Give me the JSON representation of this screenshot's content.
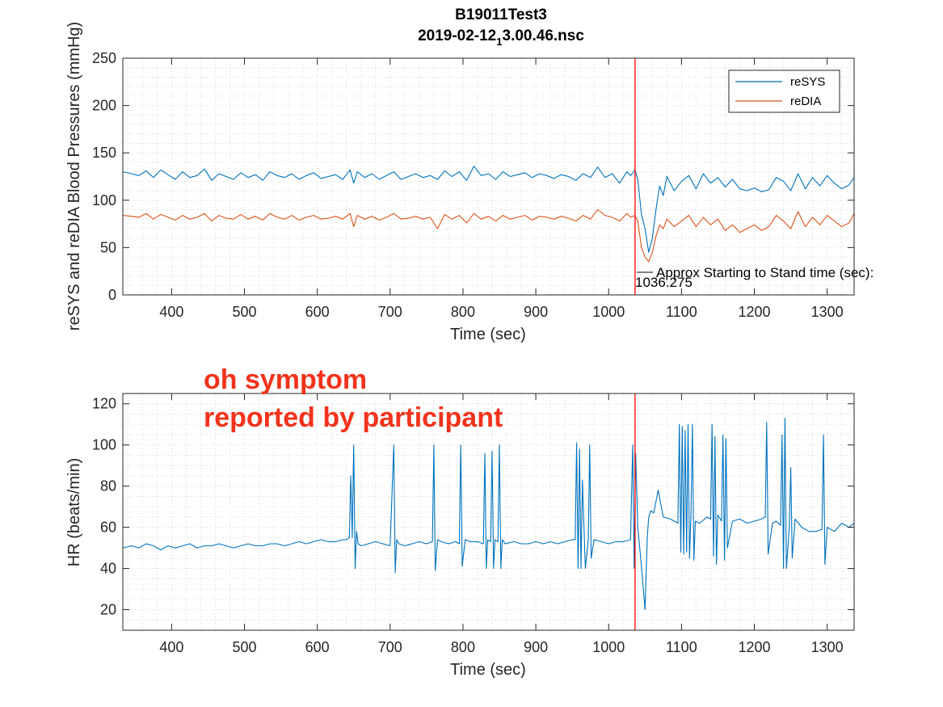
{
  "chart_data": [
    {
      "type": "line",
      "title": "B19011Test3",
      "subtitle_main": "2019-02-12",
      "subtitle_sub": "1",
      "subtitle_tail": "3.00.46.nsc",
      "xlabel": "Time (sec)",
      "ylabel": "reSYS and reDIA Blood Pressures (mmHg)",
      "xlim": [
        333,
        1337
      ],
      "ylim": [
        0,
        250
      ],
      "xticks": [
        400,
        500,
        600,
        700,
        800,
        900,
        1000,
        1100,
        1200,
        1300
      ],
      "yticks": [
        0,
        50,
        100,
        150,
        200,
        250
      ],
      "grid": true,
      "legend_placement": "top-right",
      "series": [
        {
          "name": "reSYS",
          "color": "#0072bd",
          "x": [
            333,
            345,
            355,
            365,
            375,
            385,
            395,
            405,
            415,
            425,
            435,
            445,
            455,
            465,
            475,
            485,
            495,
            505,
            515,
            525,
            535,
            545,
            555,
            565,
            575,
            585,
            595,
            605,
            615,
            625,
            635,
            645,
            650,
            655,
            665,
            675,
            685,
            695,
            705,
            715,
            725,
            735,
            745,
            755,
            765,
            775,
            785,
            795,
            805,
            815,
            825,
            835,
            845,
            855,
            865,
            875,
            885,
            895,
            905,
            915,
            925,
            935,
            945,
            955,
            965,
            975,
            985,
            995,
            1005,
            1015,
            1025,
            1030,
            1036,
            1040,
            1045,
            1050,
            1055,
            1060,
            1065,
            1070,
            1075,
            1080,
            1090,
            1100,
            1110,
            1120,
            1130,
            1140,
            1150,
            1160,
            1170,
            1180,
            1190,
            1200,
            1210,
            1220,
            1230,
            1240,
            1250,
            1260,
            1270,
            1280,
            1290,
            1300,
            1310,
            1320,
            1330,
            1337
          ],
          "values": [
            130,
            128,
            126,
            131,
            124,
            132,
            127,
            122,
            130,
            124,
            126,
            133,
            121,
            128,
            125,
            122,
            129,
            124,
            127,
            121,
            130,
            126,
            124,
            128,
            122,
            126,
            129,
            123,
            125,
            127,
            122,
            132,
            118,
            130,
            124,
            128,
            122,
            126,
            130,
            122,
            125,
            128,
            124,
            126,
            122,
            131,
            125,
            130,
            121,
            136,
            126,
            128,
            122,
            130,
            125,
            127,
            129,
            124,
            128,
            126,
            123,
            127,
            125,
            121,
            128,
            124,
            135,
            124,
            128,
            118,
            130,
            126,
            132,
            122,
            85,
            70,
            45,
            60,
            90,
            115,
            105,
            125,
            110,
            120,
            126,
            112,
            128,
            118,
            124,
            114,
            122,
            112,
            110,
            113,
            109,
            111,
            124,
            120,
            110,
            128,
            112,
            124,
            115,
            126,
            118,
            112,
            116,
            124
          ]
        },
        {
          "name": "reDIA",
          "color": "#d95319",
          "x": [
            333,
            345,
            355,
            365,
            375,
            385,
            395,
            405,
            415,
            425,
            435,
            445,
            455,
            465,
            475,
            485,
            495,
            505,
            515,
            525,
            535,
            545,
            555,
            565,
            575,
            585,
            595,
            605,
            615,
            625,
            635,
            645,
            650,
            655,
            665,
            675,
            685,
            695,
            705,
            715,
            725,
            735,
            745,
            755,
            765,
            775,
            785,
            795,
            805,
            815,
            825,
            835,
            845,
            855,
            865,
            875,
            885,
            895,
            905,
            915,
            925,
            935,
            945,
            955,
            965,
            975,
            985,
            995,
            1005,
            1015,
            1025,
            1030,
            1036,
            1040,
            1045,
            1050,
            1055,
            1060,
            1065,
            1070,
            1075,
            1080,
            1090,
            1100,
            1110,
            1120,
            1130,
            1140,
            1150,
            1160,
            1170,
            1180,
            1190,
            1200,
            1210,
            1220,
            1230,
            1240,
            1250,
            1260,
            1270,
            1280,
            1290,
            1300,
            1310,
            1320,
            1330,
            1337
          ],
          "values": [
            84,
            83,
            82,
            86,
            80,
            85,
            82,
            79,
            84,
            80,
            82,
            86,
            78,
            84,
            81,
            80,
            85,
            80,
            83,
            79,
            86,
            82,
            80,
            84,
            79,
            82,
            84,
            80,
            81,
            83,
            80,
            86,
            72,
            84,
            80,
            83,
            79,
            82,
            86,
            80,
            81,
            83,
            80,
            82,
            70,
            85,
            80,
            84,
            76,
            86,
            80,
            83,
            78,
            84,
            80,
            82,
            84,
            79,
            83,
            82,
            80,
            83,
            81,
            78,
            84,
            80,
            90,
            84,
            82,
            78,
            86,
            82,
            84,
            78,
            50,
            40,
            35,
            45,
            62,
            74,
            70,
            80,
            72,
            78,
            84,
            72,
            82,
            74,
            80,
            68,
            74,
            66,
            70,
            74,
            68,
            72,
            84,
            78,
            70,
            88,
            72,
            82,
            74,
            84,
            78,
            72,
            76,
            86
          ]
        }
      ],
      "vline": {
        "x": 1036.275,
        "color": "#ff0000"
      },
      "annotation_label": "Approx Starting to Stand time (sec):",
      "annotation_value": "1036.275"
    },
    {
      "type": "line",
      "xlabel": "Time (sec)",
      "ylabel": "HR (beats/min)",
      "xlim": [
        333,
        1337
      ],
      "ylim": [
        10,
        125
      ],
      "xticks": [
        400,
        500,
        600,
        700,
        800,
        900,
        1000,
        1100,
        1200,
        1300
      ],
      "yticks": [
        20,
        40,
        60,
        80,
        100,
        120
      ],
      "grid": true,
      "series": [
        {
          "color": "#0072bd",
          "x": [
            333,
            345,
            355,
            365,
            375,
            385,
            395,
            405,
            415,
            425,
            435,
            445,
            455,
            465,
            475,
            485,
            495,
            505,
            515,
            525,
            535,
            545,
            555,
            565,
            575,
            585,
            595,
            605,
            615,
            625,
            635,
            640,
            644,
            646,
            648,
            650,
            652,
            654,
            656,
            660,
            670,
            680,
            690,
            700,
            705,
            707,
            709,
            712,
            720,
            730,
            740,
            750,
            758,
            760,
            762,
            765,
            770,
            780,
            790,
            795,
            797,
            799,
            803,
            810,
            820,
            828,
            830,
            832,
            834,
            838,
            840,
            842,
            844,
            848,
            850,
            852,
            854,
            858,
            870,
            880,
            890,
            900,
            910,
            920,
            930,
            940,
            950,
            954,
            956,
            958,
            960,
            962,
            964,
            968,
            972,
            974,
            976,
            980,
            990,
            1000,
            1010,
            1020,
            1030,
            1033,
            1035,
            1037,
            1040,
            1044,
            1050,
            1053,
            1055,
            1058,
            1062,
            1068,
            1075,
            1085,
            1095,
            1097,
            1099,
            1101,
            1103,
            1105,
            1107,
            1109,
            1111,
            1113,
            1115,
            1117,
            1119,
            1125,
            1135,
            1140,
            1142,
            1144,
            1146,
            1148,
            1150,
            1155,
            1157,
            1159,
            1161,
            1163,
            1170,
            1180,
            1190,
            1200,
            1210,
            1215,
            1217,
            1219,
            1225,
            1230,
            1236,
            1238,
            1240,
            1242,
            1244,
            1248,
            1250,
            1252,
            1256,
            1265,
            1275,
            1285,
            1293,
            1295,
            1297,
            1300,
            1310,
            1320,
            1330,
            1337
          ],
          "values": [
            50,
            51,
            50,
            52,
            51,
            49,
            51,
            50,
            51,
            52,
            50,
            51,
            51,
            52,
            51,
            50,
            51,
            52,
            51,
            51,
            52,
            52,
            51,
            52,
            53,
            52,
            53,
            54,
            53,
            53,
            54,
            54,
            55,
            85,
            55,
            100,
            40,
            58,
            52,
            51,
            52,
            53,
            52,
            51,
            100,
            38,
            54,
            52,
            51,
            52,
            53,
            52,
            53,
            100,
            39,
            54,
            53,
            52,
            53,
            52,
            100,
            41,
            54,
            53,
            53,
            52,
            96,
            40,
            54,
            53,
            97,
            40,
            54,
            53,
            100,
            40,
            54,
            52,
            53,
            52,
            52,
            53,
            52,
            53,
            52,
            53,
            54,
            54,
            101,
            40,
            98,
            40,
            83,
            40,
            54,
            100,
            45,
            54,
            53,
            52,
            53,
            53,
            54,
            100,
            40,
            96,
            60,
            45,
            20,
            55,
            65,
            68,
            67,
            78,
            65,
            64,
            62,
            110,
            48,
            109,
            47,
            107,
            48,
            110,
            45,
            66,
            110,
            44,
            63,
            62,
            65,
            64,
            110,
            46,
            104,
            42,
            66,
            63,
            105,
            44,
            103,
            50,
            63,
            64,
            62,
            63,
            64,
            65,
            111,
            47,
            62,
            63,
            61,
            105,
            40,
            113,
            40,
            60,
            89,
            45,
            64,
            60,
            58,
            58,
            59,
            105,
            42,
            60,
            58,
            62,
            60,
            62
          ]
        }
      ],
      "vline": {
        "x": 1036.275,
        "color": "#ff0000"
      }
    }
  ],
  "annotation_text": {
    "line1": "oh symptom",
    "line2": "reported by participant"
  }
}
